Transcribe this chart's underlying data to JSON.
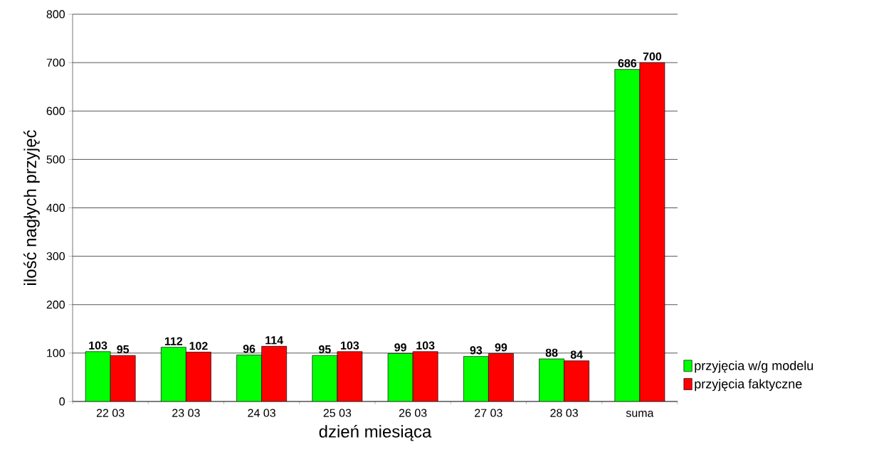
{
  "chart_data": {
    "type": "bar",
    "xlabel": "dzień miesiąca",
    "ylabel": "ilość nagłych przyjęć",
    "categories": [
      "22 03",
      "23 03",
      "24 03",
      "25 03",
      "26 03",
      "27 03",
      "28 03",
      "suma"
    ],
    "series": [
      {
        "name": "przyjęcia w/g modelu",
        "color": "#00ff00",
        "values": [
          103,
          112,
          96,
          95,
          99,
          93,
          88,
          686
        ]
      },
      {
        "name": "przyjęcia faktyczne",
        "color": "#ff0000",
        "values": [
          95,
          102,
          114,
          103,
          103,
          99,
          84,
          700
        ]
      }
    ],
    "ylim": [
      0,
      800
    ],
    "yticks": [
      0,
      100,
      200,
      300,
      400,
      500,
      600,
      700,
      800
    ],
    "grid": "y",
    "legend": "right",
    "data_labels": true
  }
}
